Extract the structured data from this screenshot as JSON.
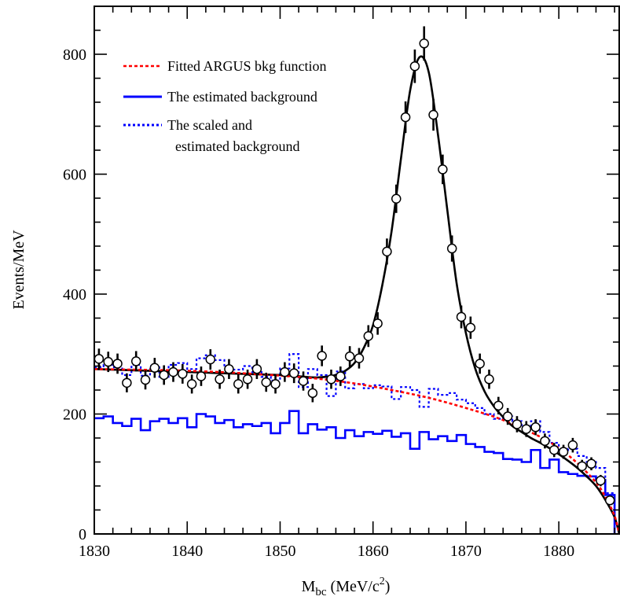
{
  "chart_data": {
    "type": "line",
    "xlabel": "M",
    "xlabel_sub": "bc",
    "xlabel_unit_pre": " (MeV/c",
    "xlabel_unit_sup": "2",
    "xlabel_unit_post": ")",
    "ylabel": "Events/MeV",
    "xlim": [
      1830,
      1886.5
    ],
    "ylim": [
      0,
      880
    ],
    "x_ticks": [
      1830,
      1840,
      1850,
      1860,
      1870,
      1880
    ],
    "x_tick_labels": [
      "1830",
      "1840",
      "1850",
      "1860",
      "1870",
      "1880"
    ],
    "y_ticks": [
      0,
      200,
      400,
      600,
      800
    ],
    "y_tick_labels": [
      "0",
      "200",
      "400",
      "600",
      "800"
    ],
    "grid": false,
    "legend_position": "top-left",
    "legend": [
      {
        "label": "Fitted ARGUS bkg function",
        "style": "dashed",
        "color": "#ff0000"
      },
      {
        "label": "The estimated background",
        "style": "solid",
        "color": "#0000ff"
      },
      {
        "label": "The scaled and",
        "label2": "estimated background",
        "style": "dotted",
        "color": "#0000ff"
      }
    ],
    "colors": {
      "data": "#000000",
      "fit": "#000000",
      "argus": "#ff0000",
      "background": "#0000ff"
    },
    "series": [
      {
        "name": "Data",
        "kind": "points_with_errors",
        "x": [
          1830.5,
          1831.5,
          1832.5,
          1833.5,
          1834.5,
          1835.5,
          1836.5,
          1837.5,
          1838.5,
          1839.5,
          1840.5,
          1841.5,
          1842.5,
          1843.5,
          1844.5,
          1845.5,
          1846.5,
          1847.5,
          1848.5,
          1849.5,
          1850.5,
          1851.5,
          1852.5,
          1853.5,
          1854.5,
          1855.5,
          1856.5,
          1857.5,
          1858.5,
          1859.5,
          1860.5,
          1861.5,
          1862.5,
          1863.5,
          1864.5,
          1865.5,
          1866.5,
          1867.5,
          1868.5,
          1869.5,
          1870.5,
          1871.5,
          1872.5,
          1873.5,
          1874.5,
          1875.5,
          1876.5,
          1877.5,
          1878.5,
          1879.5,
          1880.5,
          1881.5,
          1882.5,
          1883.5,
          1884.5,
          1885.5
        ],
        "y": [
          292,
          287,
          284,
          252,
          288,
          257,
          277,
          265,
          270,
          267,
          250,
          263,
          291,
          258,
          275,
          250,
          258,
          275,
          253,
          250,
          270,
          268,
          255,
          235,
          297,
          258,
          263,
          296,
          293,
          330,
          351,
          471,
          559,
          695,
          780,
          818,
          699,
          608,
          476,
          362,
          344,
          284,
          258,
          214,
          196,
          183,
          175,
          178,
          155,
          140,
          137,
          148,
          113,
          117,
          89,
          56
        ]
      },
      {
        "name": "Fit",
        "kind": "curve",
        "x": [
          1830,
          1832,
          1834,
          1836,
          1838,
          1840,
          1842,
          1844,
          1846,
          1848,
          1850,
          1852,
          1854,
          1856,
          1857,
          1858,
          1859,
          1860,
          1861,
          1862,
          1863,
          1864,
          1865,
          1866,
          1867,
          1868,
          1869,
          1870,
          1871,
          1872,
          1873,
          1874,
          1875,
          1876,
          1877,
          1878,
          1879,
          1880,
          1881,
          1882,
          1883,
          1884,
          1885,
          1886,
          1886.5
        ],
        "y": [
          275,
          274,
          273,
          272,
          271,
          270,
          269,
          268,
          267,
          266,
          265,
          263,
          261,
          265,
          272,
          285,
          310,
          348,
          415,
          505,
          625,
          740,
          795,
          770,
          665,
          540,
          418,
          335,
          276,
          238,
          213,
          195,
          180,
          170,
          160,
          152,
          143,
          133,
          122,
          110,
          96,
          80,
          57,
          28,
          0
        ]
      },
      {
        "name": "ARGUS",
        "kind": "dashed_curve",
        "x": [
          1830,
          1834,
          1838,
          1842,
          1846,
          1850,
          1854,
          1858,
          1862,
          1866,
          1870,
          1874,
          1878,
          1880,
          1882,
          1884,
          1885,
          1886,
          1886.5
        ],
        "y": [
          275,
          274,
          273,
          271,
          268,
          264,
          259,
          251,
          240,
          227,
          210,
          190,
          162,
          143,
          118,
          86,
          62,
          30,
          0
        ]
      },
      {
        "name": "Estimated background",
        "kind": "step",
        "x": [
          1830,
          1831,
          1832,
          1833,
          1834,
          1835,
          1836,
          1837,
          1838,
          1839,
          1840,
          1841,
          1842,
          1843,
          1844,
          1845,
          1846,
          1847,
          1848,
          1849,
          1850,
          1851,
          1852,
          1853,
          1854,
          1855,
          1856,
          1857,
          1858,
          1859,
          1860,
          1861,
          1862,
          1863,
          1864,
          1865,
          1866,
          1867,
          1868,
          1869,
          1870,
          1871,
          1872,
          1873,
          1874,
          1875,
          1876,
          1877,
          1878,
          1879,
          1880,
          1881,
          1882,
          1883,
          1884,
          1885,
          1886
        ],
        "y": [
          193,
          196,
          185,
          180,
          192,
          173,
          188,
          192,
          185,
          193,
          178,
          200,
          196,
          185,
          190,
          178,
          183,
          180,
          185,
          168,
          185,
          205,
          168,
          183,
          174,
          178,
          160,
          173,
          163,
          170,
          167,
          172,
          162,
          168,
          142,
          170,
          158,
          163,
          155,
          165,
          150,
          145,
          137,
          135,
          125,
          124,
          120,
          140,
          110,
          124,
          103,
          100,
          97,
          96,
          90,
          65,
          0
        ]
      },
      {
        "name": "Scaled and estimated background",
        "kind": "dotted_step",
        "x": [
          1830,
          1831,
          1832,
          1833,
          1834,
          1835,
          1836,
          1837,
          1838,
          1839,
          1840,
          1841,
          1842,
          1843,
          1844,
          1845,
          1846,
          1847,
          1848,
          1849,
          1850,
          1851,
          1852,
          1853,
          1854,
          1855,
          1856,
          1857,
          1858,
          1859,
          1860,
          1861,
          1862,
          1863,
          1864,
          1865,
          1866,
          1867,
          1868,
          1869,
          1870,
          1871,
          1872,
          1873,
          1874,
          1875,
          1876,
          1877,
          1878,
          1879,
          1880,
          1881,
          1882,
          1883,
          1884,
          1885,
          1886
        ],
        "y": [
          278,
          282,
          278,
          265,
          282,
          264,
          280,
          262,
          282,
          285,
          275,
          293,
          298,
          290,
          276,
          274,
          280,
          270,
          262,
          256,
          276,
          300,
          245,
          275,
          265,
          230,
          271,
          243,
          250,
          243,
          248,
          246,
          225,
          245,
          240,
          212,
          242,
          232,
          235,
          224,
          218,
          210,
          200,
          192,
          196,
          188,
          177,
          188,
          170,
          152,
          140,
          142,
          130,
          120,
          110,
          68,
          0
        ]
      }
    ]
  }
}
